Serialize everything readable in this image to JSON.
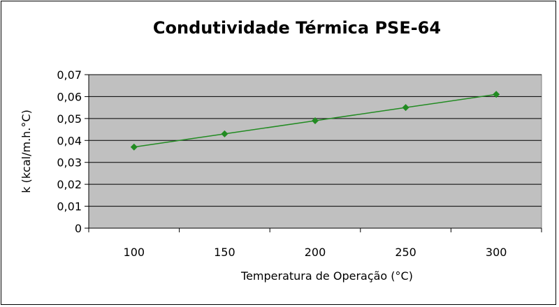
{
  "chart_data": {
    "type": "line",
    "title": "Condutividade Térmica PSE-64",
    "xlabel": "Temperatura de Operação (°C)",
    "ylabel": "k (kcal/m.h.°C)",
    "categories": [
      "100",
      "150",
      "200",
      "250",
      "300"
    ],
    "series": [
      {
        "values": [
          0.037,
          0.043,
          0.049,
          0.055,
          0.061
        ],
        "color": "#228b22",
        "marker": "diamond"
      }
    ],
    "ylim": [
      0,
      0.07
    ],
    "y_ticks": [
      "0",
      "0,01",
      "0,02",
      "0,03",
      "0,04",
      "0,05",
      "0,06",
      "0,07"
    ],
    "grid": true,
    "plot_background": "#c0c0c0",
    "legend": "none"
  }
}
